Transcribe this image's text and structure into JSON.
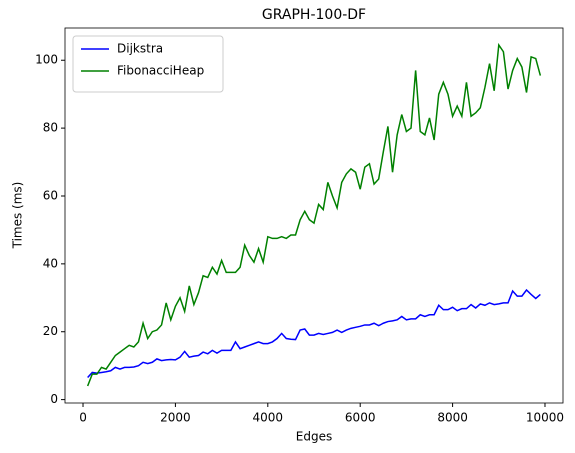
{
  "chart_data": {
    "type": "line",
    "title": "GRAPH-100-DF",
    "xlabel": "Edges",
    "ylabel": "Times (ms)",
    "x": [
      100,
      200,
      300,
      400,
      500,
      600,
      700,
      800,
      900,
      1000,
      1100,
      1200,
      1300,
      1400,
      1500,
      1600,
      1700,
      1800,
      1900,
      2000,
      2100,
      2200,
      2300,
      2400,
      2500,
      2600,
      2700,
      2800,
      2900,
      3000,
      3100,
      3200,
      3300,
      3400,
      3500,
      3600,
      3700,
      3800,
      3900,
      4000,
      4100,
      4200,
      4300,
      4400,
      4500,
      4600,
      4700,
      4800,
      4900,
      5000,
      5100,
      5200,
      5300,
      5400,
      5500,
      5600,
      5700,
      5800,
      5900,
      6000,
      6100,
      6200,
      6300,
      6400,
      6500,
      6600,
      6700,
      6800,
      6900,
      7000,
      7100,
      7200,
      7300,
      7400,
      7500,
      7600,
      7700,
      7800,
      7900,
      8000,
      8100,
      8200,
      8300,
      8400,
      8500,
      8600,
      8700,
      8800,
      8900,
      9000,
      9100,
      9200,
      9300,
      9400,
      9500,
      9600,
      9700,
      9800,
      9900
    ],
    "series": [
      {
        "name": "Dijkstra",
        "color": "#0000ff",
        "values": [
          6.5,
          8,
          7.8,
          8,
          8.2,
          8.5,
          9.5,
          9,
          9.5,
          9.5,
          9.6,
          10,
          11,
          10.6,
          11,
          12,
          11.5,
          11.7,
          11.8,
          11.7,
          12.5,
          14.2,
          12.5,
          12.8,
          13,
          14,
          13.5,
          14.5,
          13.7,
          14.5,
          14.5,
          14.5,
          17,
          15,
          15.5,
          16,
          16.5,
          17,
          16.5,
          16.5,
          17,
          18,
          19.5,
          18,
          17.8,
          17.7,
          20.5,
          20.8,
          19,
          19,
          19.5,
          19.2,
          19.5,
          19.8,
          20.5,
          19.8,
          20.5,
          21,
          21.3,
          21.6,
          22,
          22,
          22.5,
          21.8,
          22.5,
          23,
          23.2,
          23.5,
          24.5,
          23.5,
          23.8,
          23.8,
          25,
          24.5,
          25,
          25,
          27.8,
          26.5,
          26.5,
          27.2,
          26.2,
          26.8,
          26.8,
          28,
          27,
          28.2,
          27.8,
          28.5,
          28,
          28.2,
          28.5,
          28.5,
          32,
          30.5,
          30.5,
          32.3,
          31,
          29.8,
          31
        ]
      },
      {
        "name": "FibonacciHeap",
        "color": "#008000",
        "values": [
          4,
          7.5,
          7.5,
          9.5,
          9,
          11,
          13,
          14,
          15,
          16,
          15.5,
          17,
          22.5,
          18,
          20,
          20.5,
          22,
          28.5,
          23.5,
          27.5,
          30,
          26,
          33.5,
          28,
          31.5,
          36.5,
          36,
          39,
          37,
          41,
          37.5,
          37.5,
          37.5,
          39,
          45.5,
          42.5,
          40.5,
          44.5,
          40.5,
          48,
          47.5,
          47.5,
          48,
          47.5,
          48.5,
          48.5,
          53,
          55.5,
          53,
          52,
          57.5,
          56,
          64,
          60,
          56.5,
          64,
          66.5,
          68,
          67,
          62,
          68.5,
          69.5,
          63.5,
          65,
          73,
          80.5,
          67,
          78,
          84,
          79,
          80,
          97,
          79,
          78,
          83,
          76.5,
          90,
          93.5,
          90,
          83.5,
          86.5,
          83.5,
          93.5,
          83.5,
          84.5,
          86,
          92,
          99,
          91,
          104.5,
          102.5,
          91.5,
          97,
          100.5,
          98,
          90.5,
          101,
          100.5,
          95.5
        ]
      }
    ],
    "xlim": [
      -390,
      10390
    ],
    "ylim": [
      -1,
      109.5
    ],
    "xticks": [
      0,
      2000,
      4000,
      6000,
      8000,
      10000
    ],
    "yticks": [
      0,
      20,
      40,
      60,
      80,
      100
    ],
    "legend": "upper left",
    "grid": false
  }
}
